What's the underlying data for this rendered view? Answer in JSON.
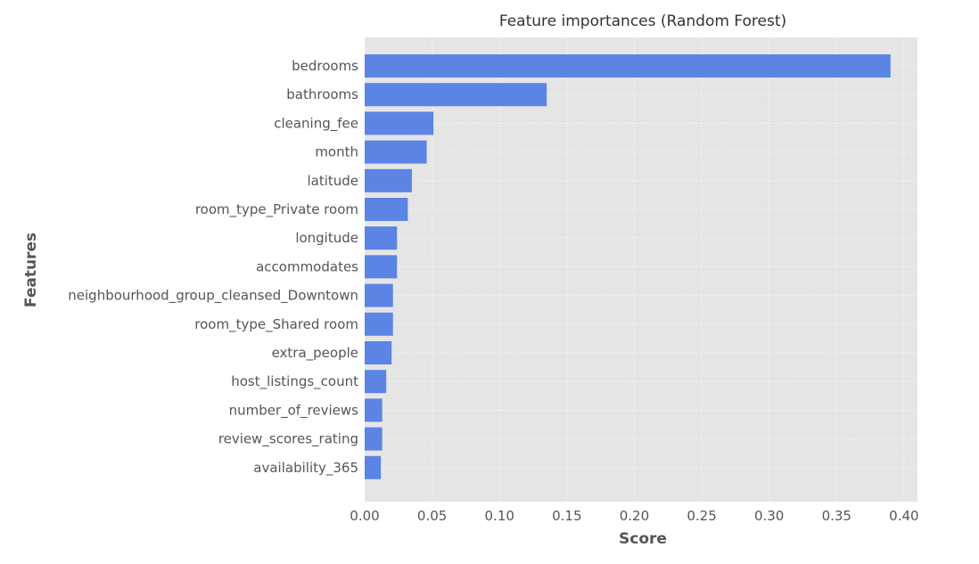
{
  "chart_data": {
    "type": "bar",
    "orientation": "horizontal",
    "title": "Feature importances (Random Forest)",
    "xlabel": "Score",
    "ylabel": "Features",
    "xlim": [
      0.0,
      0.41
    ],
    "xticks": [
      0.0,
      0.05,
      0.1,
      0.15,
      0.2,
      0.25,
      0.3,
      0.35,
      0.4
    ],
    "xtick_labels": [
      "0.00",
      "0.05",
      "0.10",
      "0.15",
      "0.20",
      "0.25",
      "0.30",
      "0.35",
      "0.40"
    ],
    "grid": true,
    "bar_color": "#5b84e4",
    "background_color": "#e5e5e5",
    "categories": [
      "bedrooms",
      "bathrooms",
      "cleaning_fee",
      "month",
      "latitude",
      "room_type_Private room",
      "longitude",
      "accommodates",
      "neighbourhood_group_cleansed_Downtown",
      "room_type_Shared room",
      "extra_people",
      "host_listings_count",
      "number_of_reviews",
      "review_scores_rating",
      "availability_365"
    ],
    "values": [
      0.39,
      0.135,
      0.051,
      0.046,
      0.035,
      0.032,
      0.024,
      0.024,
      0.021,
      0.021,
      0.02,
      0.016,
      0.013,
      0.013,
      0.012
    ]
  }
}
